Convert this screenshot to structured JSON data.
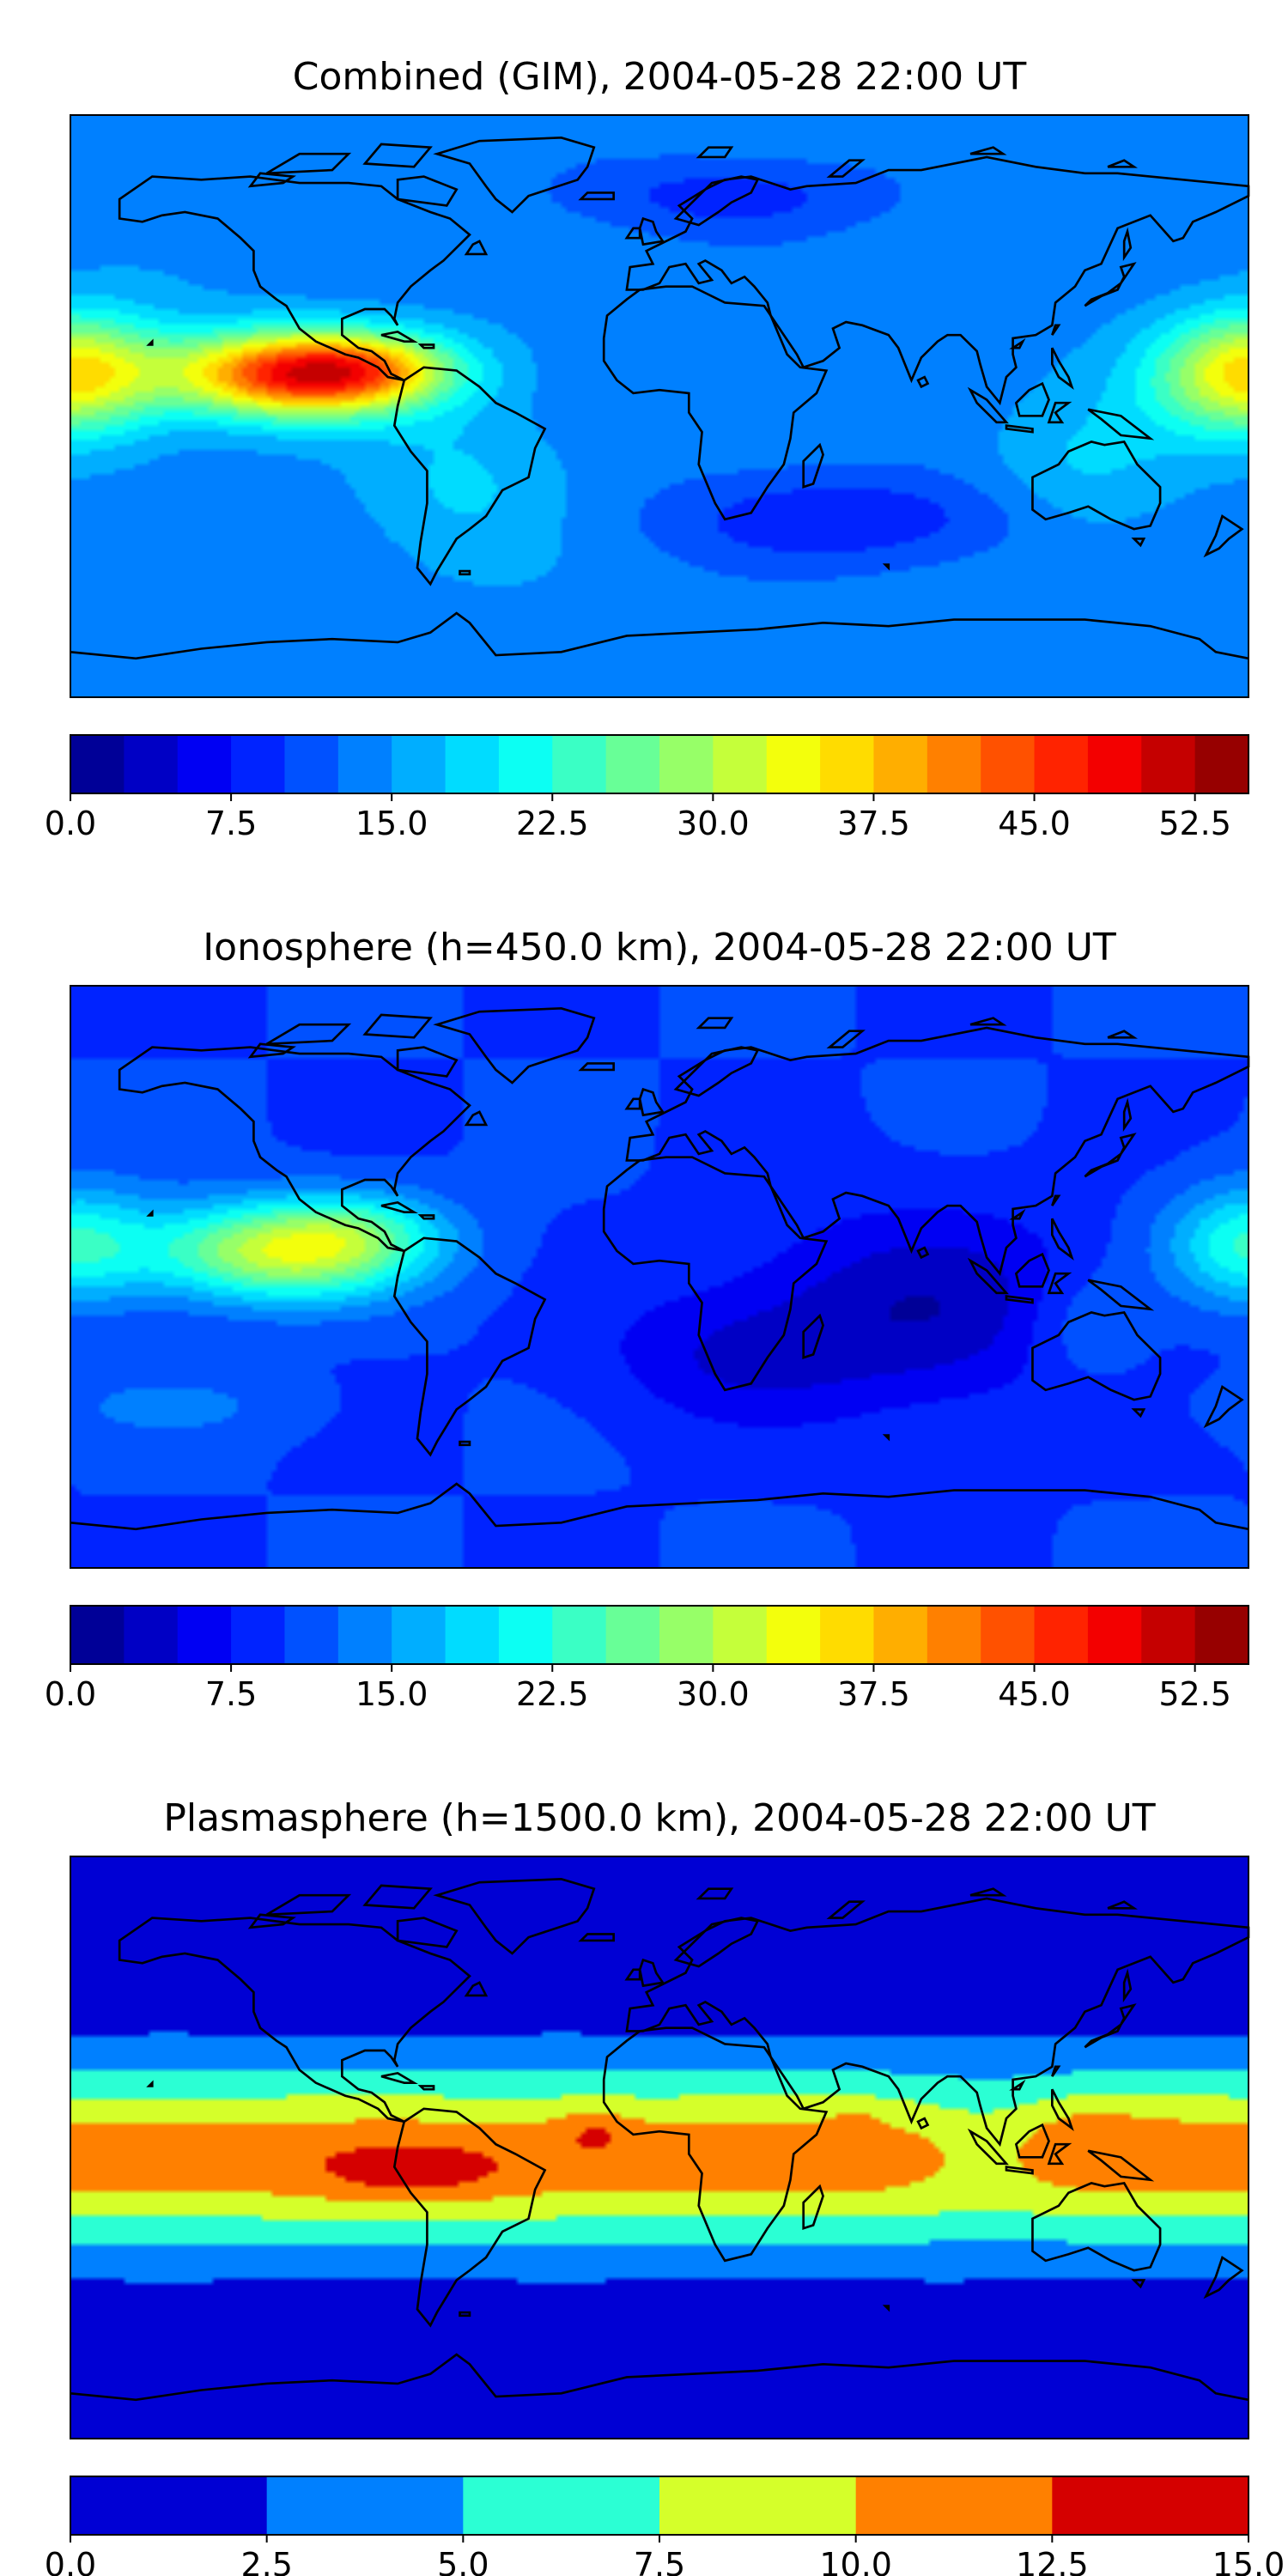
{
  "figure": {
    "panels": [
      {
        "id": "combined",
        "title": "Combined (GIM), 2004-05-28 22:00 UT",
        "colorbar": {
          "colormap": "jet",
          "vmin": 0,
          "vmax": 55,
          "levels": 22,
          "ticks": [
            "0.0",
            "7.5",
            "15.0",
            "22.5",
            "30.0",
            "37.5",
            "45.0",
            "52.5"
          ],
          "tick_values": [
            0,
            7.5,
            15,
            22.5,
            30,
            37.5,
            45,
            52.5
          ]
        },
        "field": {
          "base": 14,
          "blobs": [
            {
              "lon": -110,
              "lat": 10,
              "amp": 34,
              "slon": 38,
              "slat": 13
            },
            {
              "lon": -85,
              "lat": 12,
              "amp": 8,
              "slon": 25,
              "slat": 10
            },
            {
              "lon": 180,
              "lat": 10,
              "amp": 22,
              "slon": 28,
              "slat": 18
            },
            {
              "lon": -60,
              "lat": -25,
              "amp": 4,
              "slon": 30,
              "slat": 25
            },
            {
              "lon": 60,
              "lat": -35,
              "amp": -6,
              "slon": 60,
              "slat": 15
            },
            {
              "lon": 20,
              "lat": 65,
              "amp": -5,
              "slon": 50,
              "slat": 12
            },
            {
              "lon": 130,
              "lat": -20,
              "amp": 4,
              "slon": 30,
              "slat": 25
            }
          ]
        }
      },
      {
        "id": "ionosphere",
        "title": "Ionosphere  (h=450.0 km), 2004-05-28 22:00 UT",
        "colorbar": {
          "colormap": "jet",
          "vmin": 0,
          "vmax": 55,
          "levels": 22,
          "ticks": [
            "0.0",
            "7.5",
            "15.0",
            "22.5",
            "30.0",
            "37.5",
            "45.0",
            "52.5"
          ],
          "tick_values": [
            0,
            7.5,
            15,
            22.5,
            30,
            37.5,
            45,
            52.5
          ]
        },
        "field": {
          "base": 10,
          "blobs": [
            {
              "lon": -115,
              "lat": 8,
              "amp": 22,
              "slon": 40,
              "slat": 15
            },
            {
              "lon": -90,
              "lat": 15,
              "amp": 6,
              "slon": 25,
              "slat": 12
            },
            {
              "lon": 180,
              "lat": 10,
              "amp": 12,
              "slon": 25,
              "slat": 18
            },
            {
              "lon": 80,
              "lat": -10,
              "amp": -7,
              "slon": 55,
              "slat": 30
            },
            {
              "lon": 20,
              "lat": -25,
              "amp": -4,
              "slon": 40,
              "slat": 20
            },
            {
              "lon": 130,
              "lat": -15,
              "amp": 4,
              "slon": 20,
              "slat": 18
            },
            {
              "lon": -150,
              "lat": -40,
              "amp": 3,
              "slon": 40,
              "slat": 10
            }
          ]
        }
      },
      {
        "id": "plasmasphere",
        "title": "Plasmasphere (h=1500.0 km), 2004-05-28 22:00 UT",
        "colorbar": {
          "colormap": "jet",
          "vmin": 0,
          "vmax": 15,
          "levels": 6,
          "ticks": [
            "0.0",
            "2.5",
            "5.0",
            "7.5",
            "10.0",
            "12.5",
            "15.0"
          ],
          "tick_values": [
            0,
            2.5,
            5,
            7.5,
            10,
            12.5,
            15
          ]
        },
        "field": {
          "base": 1.0,
          "band": {
            "amp": 10.5,
            "lat0": -3,
            "sigma": 27
          },
          "blobs": [
            {
              "lon": -75,
              "lat": -8,
              "amp": 2.8,
              "slon": 28,
              "slat": 9
            },
            {
              "lon": -20,
              "lat": 5,
              "amp": 2.2,
              "slon": 10,
              "slat": 7
            },
            {
              "lon": 100,
              "lat": 0,
              "amp": -2.0,
              "slon": 22,
              "slat": 20
            },
            {
              "lon": 130,
              "lat": 5,
              "amp": 1.2,
              "slon": 18,
              "slat": 10
            },
            {
              "lon": 60,
              "lat": 10,
              "amp": 1.0,
              "slon": 8,
              "slat": 5
            }
          ]
        }
      }
    ],
    "colors": {
      "coastline": "#000000",
      "frame": "#000000",
      "jet_ramp": [
        "#00007f",
        "#0000ff",
        "#007fff",
        "#00ffff",
        "#7fff7f",
        "#ffff00",
        "#ff7f00",
        "#ff0000",
        "#7f0000"
      ]
    }
  }
}
